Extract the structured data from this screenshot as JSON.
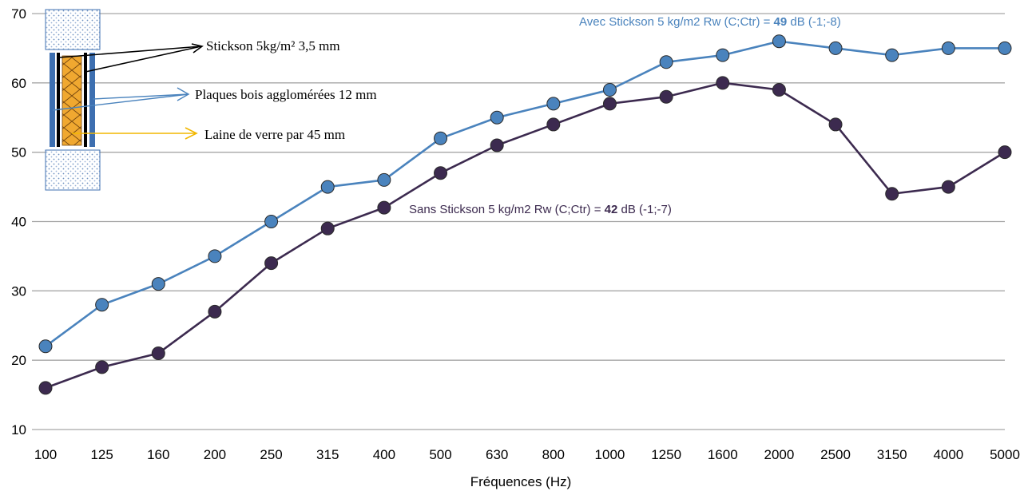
{
  "chart_data": {
    "type": "line",
    "title": "",
    "xlabel": "Fréquences (Hz)",
    "ylabel": "",
    "ylim": [
      10,
      70
    ],
    "yticks": [
      10,
      20,
      30,
      40,
      50,
      60,
      70
    ],
    "grid": true,
    "categories": [
      "100",
      "125",
      "160",
      "200",
      "250",
      "315",
      "400",
      "500",
      "630",
      "800",
      "1000",
      "1250",
      "1600",
      "2000",
      "2500",
      "3150",
      "4000",
      "5000"
    ],
    "series": [
      {
        "name": "Avec Stickson 5 kg/m2",
        "color": "#4a83bd",
        "values": [
          22,
          28,
          31,
          35,
          40,
          45,
          46,
          52,
          55,
          57,
          59,
          63,
          64,
          66,
          65,
          64,
          65,
          65
        ]
      },
      {
        "name": "Sans Stickson 5 kg/m2",
        "color": "#3c2a4f",
        "values": [
          16,
          19,
          21,
          27,
          34,
          39,
          42,
          47,
          51,
          54,
          57,
          58,
          60,
          59,
          54,
          44,
          45,
          50
        ]
      }
    ],
    "annotations": {
      "avec": {
        "prefix": "Avec Stickson 5 kg/m2 Rw (C;Ctr) = ",
        "value": "49",
        "suffix": " dB (-1;-8)",
        "color": "#4a83bd"
      },
      "sans": {
        "prefix": "Sans Stickson 5 kg/m2  Rw (C;Ctr) = ",
        "value": "42",
        "suffix": " dB (-1;-7)",
        "color": "#3c2a4f"
      }
    }
  },
  "inset": {
    "label_stickson": "Stickson 5kg/m²  3,5 mm",
    "label_plaques": "Plaques bois agglomérées 12 mm",
    "label_laine": "Laine de verre par 45 mm",
    "color_stickson": "#000000",
    "color_plaques": "#4a83bd",
    "color_laine": "#f2b700",
    "color_insulation": "#f0a830",
    "color_panel": "#3d6fb0"
  }
}
